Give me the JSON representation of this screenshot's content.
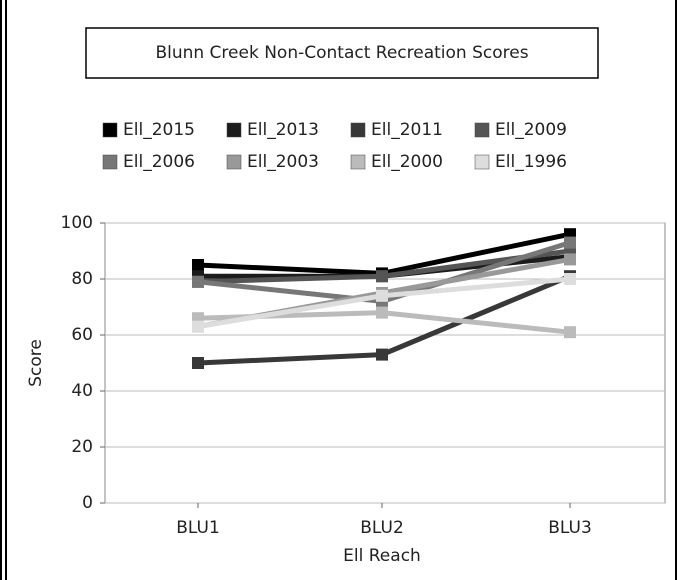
{
  "chart_data": {
    "type": "line",
    "title": "Blunn Creek Non-Contact Recreation Scores",
    "xlabel": "Ell Reach",
    "ylabel": "Score",
    "categories": [
      "BLU1",
      "BLU2",
      "BLU3"
    ],
    "ylim": [
      0,
      100
    ],
    "yticks": [
      0,
      20,
      40,
      60,
      80,
      100
    ],
    "grid": true,
    "series": [
      {
        "name": "Ell_2015",
        "color": "#000000",
        "values": [
          85,
          82,
          96
        ]
      },
      {
        "name": "Ell_2013",
        "color": "#1c1c1c",
        "values": [
          81,
          81,
          88
        ]
      },
      {
        "name": "Ell_2011",
        "color": "#383838",
        "values": [
          50,
          53,
          81
        ]
      },
      {
        "name": "Ell_2009",
        "color": "#555555",
        "values": [
          79,
          81,
          90
        ]
      },
      {
        "name": "Ell_2006",
        "color": "#777777",
        "values": [
          79,
          72,
          93
        ]
      },
      {
        "name": "Ell_2003",
        "color": "#999999",
        "values": [
          63,
          75,
          87
        ]
      },
      {
        "name": "Ell_2000",
        "color": "#bbbbbb",
        "values": [
          66,
          68,
          61
        ]
      },
      {
        "name": "Ell_1996",
        "color": "#dddddd",
        "values": [
          63,
          74,
          80
        ]
      }
    ]
  }
}
